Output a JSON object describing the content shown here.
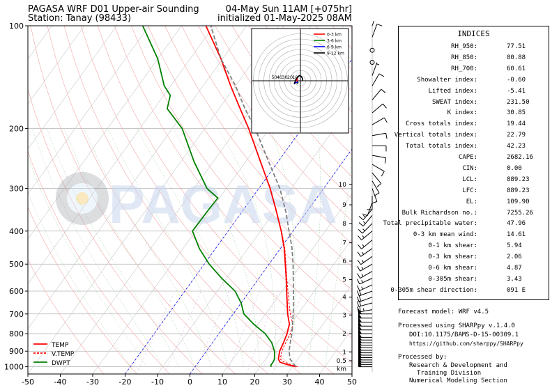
{
  "header": {
    "title_left": "PAGASA WRF D01 Upper-air Sounding",
    "station": "Station: Tanay (98433)",
    "valid_time": "04-May Sun 11AM [+075hr]",
    "init_time": "initialized 01-May-2025 08AM"
  },
  "watermark": "PAGASA",
  "chart_data": {
    "type": "line",
    "subtype": "skew-t log-p",
    "x_ticks": [
      -50,
      -40,
      -30,
      -20,
      -10,
      0,
      10,
      20,
      30,
      40,
      50
    ],
    "xlim": [
      -50,
      50
    ],
    "y_ticks": [
      100,
      200,
      300,
      400,
      500,
      600,
      700,
      800,
      900,
      1000
    ],
    "ylim": [
      1050,
      100
    ],
    "yscale": "log",
    "km_labels": [
      "km",
      "0.5",
      "1",
      "2",
      "3",
      "4",
      "5",
      "6",
      "7",
      "8",
      "9",
      "10"
    ],
    "km_pressures": [
      1000,
      960,
      905,
      800,
      705,
      625,
      555,
      490,
      433,
      380,
      335,
      292
    ],
    "legend_location": "lower-left",
    "series": [
      {
        "name": "TEMP",
        "color": "#ff0000",
        "style": "solid",
        "points": [
          [
            1000,
            31.1
          ],
          [
            985,
            27.8
          ],
          [
            970,
            25.2
          ],
          [
            950,
            24.0
          ],
          [
            900,
            22.6
          ],
          [
            850,
            21.9
          ],
          [
            800,
            21.0
          ],
          [
            750,
            19.6
          ],
          [
            700,
            16.8
          ],
          [
            650,
            14.2
          ],
          [
            600,
            11.4
          ],
          [
            550,
            8.4
          ],
          [
            500,
            5.0
          ],
          [
            450,
            1.2
          ],
          [
            400,
            -3.6
          ],
          [
            350,
            -9.5
          ],
          [
            300,
            -16.5
          ],
          [
            250,
            -25.5
          ],
          [
            200,
            -36.5
          ],
          [
            175,
            -43.5
          ],
          [
            150,
            -51.5
          ],
          [
            125,
            -60.5
          ],
          [
            100,
            -72.5
          ]
        ]
      },
      {
        "name": "V.TEMP",
        "color": "#ff0000",
        "style": "dashed",
        "points": [
          [
            1000,
            31.6
          ],
          [
            970,
            26.5
          ],
          [
            950,
            24.6
          ],
          [
            900,
            23.3
          ],
          [
            850,
            22.6
          ],
          [
            800,
            22.0
          ],
          [
            750,
            20.7
          ],
          [
            700,
            17.6
          ],
          [
            650,
            14.8
          ],
          [
            600,
            11.8
          ],
          [
            550,
            8.6
          ],
          [
            500,
            5.2
          ],
          [
            450,
            1.4
          ],
          [
            400,
            -3.5
          ]
        ]
      },
      {
        "name": "DWPT",
        "color": "#008000",
        "style": "solid",
        "points": [
          [
            1000,
            23.5
          ],
          [
            990,
            23.0
          ],
          [
            970,
            23.0
          ],
          [
            950,
            22.8
          ],
          [
            900,
            21.0
          ],
          [
            850,
            18.3
          ],
          [
            800,
            14.3
          ],
          [
            750,
            8.6
          ],
          [
            700,
            3.3
          ],
          [
            650,
            0.0
          ],
          [
            600,
            -4.5
          ],
          [
            550,
            -11.5
          ],
          [
            500,
            -18.5
          ],
          [
            450,
            -25.0
          ],
          [
            400,
            -31.0
          ],
          [
            350,
            -30.8
          ],
          [
            320,
            -30.5
          ],
          [
            300,
            -36.0
          ],
          [
            250,
            -46.0
          ],
          [
            200,
            -57.0
          ],
          [
            175,
            -66.0
          ],
          [
            160,
            -68.0
          ],
          [
            150,
            -72.0
          ],
          [
            125,
            -80.0
          ],
          [
            100,
            -92.0
          ]
        ]
      },
      {
        "name": "Parcel",
        "color": "#808080",
        "style": "dashed",
        "points": [
          [
            1000,
            31.1
          ],
          [
            950,
            27.6
          ],
          [
            900,
            25.5
          ],
          [
            850,
            24.0
          ],
          [
            800,
            22.5
          ],
          [
            750,
            20.6
          ],
          [
            700,
            18.5
          ],
          [
            650,
            16.2
          ],
          [
            600,
            13.5
          ],
          [
            550,
            10.6
          ],
          [
            500,
            7.4
          ],
          [
            450,
            3.6
          ],
          [
            400,
            -1.2
          ],
          [
            350,
            -6.6
          ],
          [
            300,
            -13.5
          ],
          [
            250,
            -23.0
          ],
          [
            200,
            -34.5
          ],
          [
            175,
            -42.0
          ],
          [
            150,
            -50.0
          ],
          [
            125,
            -60.5
          ],
          [
            100,
            -71.0
          ]
        ]
      }
    ],
    "hodograph": {
      "range_labels": [
        "50",
        "40",
        "30",
        "20",
        "10"
      ],
      "legend": [
        {
          "name": "0-3 km",
          "color": "#ff0000"
        },
        {
          "name": "3-6 km",
          "color": "#008000"
        },
        {
          "name": "6-9 km",
          "color": "#0000ff"
        },
        {
          "name": "9-12 km",
          "color": "#000000"
        }
      ],
      "segments": [
        {
          "color": "#ff0000",
          "points": [
            [
              -6,
              -3
            ],
            [
              -5,
              -1
            ],
            [
              -4,
              1
            ],
            [
              -3,
              2
            ],
            [
              -3,
              0
            ],
            [
              -3,
              -3
            ]
          ]
        },
        {
          "color": "#008000",
          "points": [
            [
              -3,
              -3
            ],
            [
              -2,
              -1
            ]
          ]
        },
        {
          "color": "#0000ff",
          "points": [
            [
              -2,
              -1
            ],
            [
              -5,
              -2
            ],
            [
              -6,
              -3
            ]
          ]
        },
        {
          "color": "#000000",
          "points": [
            [
              -6,
              -3
            ],
            [
              -4,
              2
            ],
            [
              -1,
              5
            ],
            [
              1,
              4
            ],
            [
              2,
              2
            ],
            [
              2,
              0
            ]
          ]
        }
      ]
    }
  },
  "legend_items": [
    {
      "label": "TEMP",
      "color": "#ff0000",
      "dash": ""
    },
    {
      "label": "V.TEMP",
      "color": "#ff0000",
      "dash": "3,2"
    },
    {
      "label": "DWPT",
      "color": "#008000",
      "dash": ""
    }
  ],
  "indices": {
    "header": "INDICES",
    "rows": [
      {
        "label": "RH_950:",
        "value": "77.51"
      },
      {
        "label": "RH_850:",
        "value": "80.88"
      },
      {
        "label": "RH_700:",
        "value": "60.61"
      },
      {
        "label": "Showalter index:",
        "value": "-0.60"
      },
      {
        "label": "Lifted index:",
        "value": "-5.41"
      },
      {
        "label": "SWEAT index:",
        "value": "231.50"
      },
      {
        "label": "K index:",
        "value": "30.85"
      },
      {
        "label": "Cross totals index:",
        "value": "19.44"
      },
      {
        "label": "Vertical totals index:",
        "value": "22.79"
      },
      {
        "label": "Total totals index:",
        "value": "42.23"
      },
      {
        "label": "CAPE:",
        "value": "2682.16"
      },
      {
        "label": "CIN:",
        "value": "0.00"
      },
      {
        "label": "LCL:",
        "value": "889.23"
      },
      {
        "label": "LFC:",
        "value": "889.23"
      },
      {
        "label": "EL:",
        "value": "109.90"
      },
      {
        "label": "Bulk Richardson no.:",
        "value": "7255.26"
      },
      {
        "label": "Total precipitable water:",
        "value": "47.96"
      },
      {
        "label": "0-3 km mean wind:",
        "value": "14.61"
      },
      {
        "label": "0-1 km shear:",
        "value": "5.94"
      },
      {
        "label": "0-3 km shear:",
        "value": "2.06"
      },
      {
        "label": "0-6 km shear:",
        "value": "4.87"
      },
      {
        "label": "0-305m shear:",
        "value": "3.43"
      },
      {
        "label": "0-305m shear direction:",
        "value": "091 E"
      }
    ]
  },
  "footer": {
    "forecast_model": "Forecast model: WRF v4.5",
    "processed_using": "Processed using SHARPpy v.1.4.0",
    "doi": "DOI:10.1175/BAMS-D-15-00309.1",
    "url": "https://github.com/sharppy/SHARPpy",
    "processed_by": "Processed by:",
    "org_line1": "Research & Development and",
    "org_line2": "Training Division",
    "org_line3": "Numerical Modeling Section"
  },
  "wind_barbs": {
    "levels": [
      {
        "p": 1000,
        "speed": 50,
        "dir": 270
      },
      {
        "p": 985,
        "speed": 50,
        "dir": 270
      },
      {
        "p": 970,
        "speed": 50,
        "dir": 270
      },
      {
        "p": 955,
        "speed": 50,
        "dir": 270
      },
      {
        "p": 940,
        "speed": 50,
        "dir": 270
      },
      {
        "p": 925,
        "speed": 50,
        "dir": 270
      },
      {
        "p": 910,
        "speed": 50,
        "dir": 270
      },
      {
        "p": 895,
        "speed": 50,
        "dir": 270
      },
      {
        "p": 880,
        "speed": 50,
        "dir": 270
      },
      {
        "p": 865,
        "speed": 50,
        "dir": 270
      },
      {
        "p": 850,
        "speed": 50,
        "dir": 270
      },
      {
        "p": 835,
        "speed": 50,
        "dir": 270
      },
      {
        "p": 820,
        "speed": 50,
        "dir": 270
      },
      {
        "p": 800,
        "speed": 50,
        "dir": 270
      },
      {
        "p": 780,
        "speed": 50,
        "dir": 270
      },
      {
        "p": 760,
        "speed": 50,
        "dir": 270
      },
      {
        "p": 740,
        "speed": 50,
        "dir": 270
      },
      {
        "p": 720,
        "speed": 50,
        "dir": 270
      },
      {
        "p": 700,
        "speed": 50,
        "dir": 270
      },
      {
        "p": 680,
        "speed": 25,
        "dir": 260
      },
      {
        "p": 650,
        "speed": 20,
        "dir": 255
      },
      {
        "p": 625,
        "speed": 20,
        "dir": 250
      },
      {
        "p": 600,
        "speed": 20,
        "dir": 250
      },
      {
        "p": 575,
        "speed": 15,
        "dir": 245
      },
      {
        "p": 550,
        "speed": 15,
        "dir": 245
      },
      {
        "p": 525,
        "speed": 15,
        "dir": 240
      },
      {
        "p": 500,
        "speed": 15,
        "dir": 240
      },
      {
        "p": 475,
        "speed": 15,
        "dir": 235
      },
      {
        "p": 450,
        "speed": 15,
        "dir": 235
      },
      {
        "p": 425,
        "speed": 15,
        "dir": 230
      },
      {
        "p": 400,
        "speed": 15,
        "dir": 230
      },
      {
        "p": 380,
        "speed": 15,
        "dir": 225
      },
      {
        "p": 360,
        "speed": 15,
        "dir": 220
      },
      {
        "p": 345,
        "speed": 15,
        "dir": 220
      },
      {
        "p": 330,
        "speed": 10,
        "dir": 200
      },
      {
        "p": 315,
        "speed": 10,
        "dir": 180
      },
      {
        "p": 300,
        "speed": 10,
        "dir": 160
      },
      {
        "p": 285,
        "speed": 10,
        "dir": 150
      },
      {
        "p": 270,
        "speed": 10,
        "dir": 140
      },
      {
        "p": 255,
        "speed": 10,
        "dir": 120
      },
      {
        "p": 240,
        "speed": 10,
        "dir": 100
      },
      {
        "p": 225,
        "speed": 10,
        "dir": 90
      },
      {
        "p": 210,
        "speed": 10,
        "dir": 80
      },
      {
        "p": 195,
        "speed": 10,
        "dir": 60
      },
      {
        "p": 180,
        "speed": 10,
        "dir": 50
      },
      {
        "p": 165,
        "speed": 10,
        "dir": 40
      },
      {
        "p": 150,
        "speed": 10,
        "dir": 30
      },
      {
        "p": 140,
        "speed": 5,
        "dir": 20
      },
      {
        "p": 128,
        "speed": 0,
        "dir": 0
      },
      {
        "p": 118,
        "speed": 0,
        "dir": 0
      },
      {
        "p": 108,
        "speed": 10,
        "dir": 20
      },
      {
        "p": 100,
        "speed": 10,
        "dir": 20
      }
    ]
  }
}
